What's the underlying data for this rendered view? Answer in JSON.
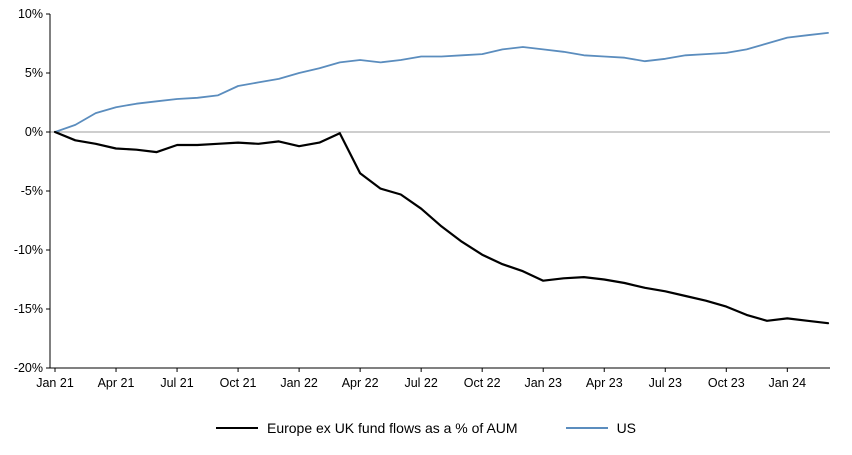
{
  "chart_data": {
    "type": "line",
    "title": "",
    "xlabel": "",
    "ylabel": "",
    "x_unit": "months since Jan 2021",
    "xlim": [
      0,
      38
    ],
    "ylim": [
      -20,
      10
    ],
    "grid": false,
    "zero_line": true,
    "legend_position": "bottom",
    "colors": {
      "axis": "#000000",
      "zero_line": "#9E9E9E",
      "background": "#FFFFFF"
    },
    "y_ticks": [
      10,
      5,
      0,
      -5,
      -10,
      -15,
      -20
    ],
    "y_tick_labels": [
      "10%",
      "5%",
      "0%",
      "-5%",
      "-10%",
      "-15%",
      "-20%"
    ],
    "x_tick_months": [
      0,
      3,
      6,
      9,
      12,
      15,
      18,
      21,
      24,
      27,
      30,
      33,
      36
    ],
    "x_tick_labels": [
      "Jan 21",
      "Apr 21",
      "Jul 21",
      "Oct 21",
      "Jan 22",
      "Apr 22",
      "Jul 22",
      "Oct 22",
      "Jan 23",
      "Apr 23",
      "Jul 23",
      "Oct 23",
      "Jan 24"
    ],
    "x_months": [
      0,
      1,
      2,
      3,
      4,
      5,
      6,
      7,
      8,
      9,
      10,
      11,
      12,
      13,
      14,
      15,
      16,
      17,
      18,
      19,
      20,
      21,
      22,
      23,
      24,
      25,
      26,
      27,
      28,
      29,
      30,
      31,
      32,
      33,
      34,
      35,
      36,
      37,
      38
    ],
    "series": [
      {
        "name": "Europe ex UK fund flows as a % of AUM",
        "color": "#000000",
        "stroke_width": 2.2,
        "values": [
          0,
          -0.7,
          -1.0,
          -1.4,
          -1.5,
          -1.7,
          -1.1,
          -1.1,
          -1.0,
          -0.9,
          -1.0,
          -0.8,
          -1.2,
          -0.9,
          -0.1,
          -3.5,
          -4.8,
          -5.3,
          -6.5,
          -8.0,
          -9.3,
          -10.4,
          -11.2,
          -11.8,
          -12.6,
          -12.4,
          -12.3,
          -12.5,
          -12.8,
          -13.2,
          -13.5,
          -13.9,
          -14.3,
          -14.8,
          -15.5,
          -16.0,
          -15.8,
          -16.0,
          -16.2
        ]
      },
      {
        "name": "US",
        "color": "#5B8DBE",
        "stroke_width": 1.8,
        "values": [
          0,
          0.6,
          1.6,
          2.1,
          2.4,
          2.6,
          2.8,
          2.9,
          3.1,
          3.9,
          4.2,
          4.5,
          5.0,
          5.4,
          5.9,
          6.1,
          5.9,
          6.1,
          6.4,
          6.4,
          6.5,
          6.6,
          7.0,
          7.2,
          7.0,
          6.8,
          6.5,
          6.4,
          6.3,
          6.0,
          6.2,
          6.5,
          6.6,
          6.7,
          7.0,
          7.5,
          8.0,
          8.2,
          8.4
        ]
      }
    ]
  }
}
